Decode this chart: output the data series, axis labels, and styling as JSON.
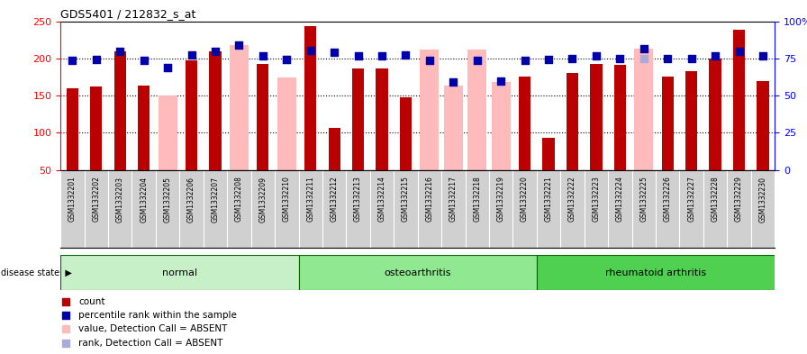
{
  "title": "GDS5401 / 212832_s_at",
  "samples": [
    "GSM1332201",
    "GSM1332202",
    "GSM1332203",
    "GSM1332204",
    "GSM1332205",
    "GSM1332206",
    "GSM1332207",
    "GSM1332208",
    "GSM1332209",
    "GSM1332210",
    "GSM1332211",
    "GSM1332212",
    "GSM1332213",
    "GSM1332214",
    "GSM1332215",
    "GSM1332216",
    "GSM1332217",
    "GSM1332218",
    "GSM1332219",
    "GSM1332220",
    "GSM1332221",
    "GSM1332222",
    "GSM1332223",
    "GSM1332224",
    "GSM1332225",
    "GSM1332226",
    "GSM1332227",
    "GSM1332228",
    "GSM1332229",
    "GSM1332230"
  ],
  "count_values": [
    160,
    162,
    210,
    163,
    null,
    197,
    210,
    null,
    193,
    null,
    243,
    107,
    187,
    186,
    148,
    null,
    null,
    null,
    null,
    175,
    93,
    181,
    192,
    191,
    null,
    175,
    183,
    200,
    238,
    170
  ],
  "rank_values": [
    197,
    199,
    209,
    197,
    188,
    205,
    210,
    218,
    204,
    199,
    211,
    208,
    203,
    204,
    205,
    197,
    168,
    197,
    170,
    197,
    199,
    200,
    204,
    200,
    213,
    200,
    200,
    204,
    210,
    204
  ],
  "absent_count": [
    null,
    null,
    null,
    null,
    150,
    null,
    null,
    218,
    null,
    174,
    null,
    null,
    null,
    null,
    null,
    212,
    164,
    212,
    168,
    null,
    null,
    null,
    null,
    null,
    213,
    null,
    null,
    null,
    null,
    null
  ],
  "absent_rank": [
    null,
    null,
    null,
    null,
    188,
    null,
    null,
    null,
    null,
    199,
    null,
    null,
    null,
    null,
    null,
    null,
    null,
    null,
    null,
    null,
    null,
    null,
    null,
    null,
    200,
    null,
    null,
    null,
    null,
    null
  ],
  "groups": [
    {
      "name": "normal",
      "start": 0,
      "end": 10,
      "color": "#c8f0c8"
    },
    {
      "name": "osteoarthritis",
      "start": 10,
      "end": 20,
      "color": "#90e890"
    },
    {
      "name": "rheumatoid arthritis",
      "start": 20,
      "end": 30,
      "color": "#50d050"
    }
  ],
  "ylim_left": [
    50,
    250
  ],
  "ylim_right": [
    0,
    100
  ],
  "yticks_left": [
    50,
    100,
    150,
    200,
    250
  ],
  "yticks_right": [
    0,
    25,
    50,
    75,
    100
  ],
  "dark_red": "#bb0000",
  "light_pink": "#ffbbbb",
  "dark_blue": "#0000aa",
  "light_blue": "#aaaadd",
  "tick_bg": "#d0d0d0",
  "group_border": "#006600"
}
